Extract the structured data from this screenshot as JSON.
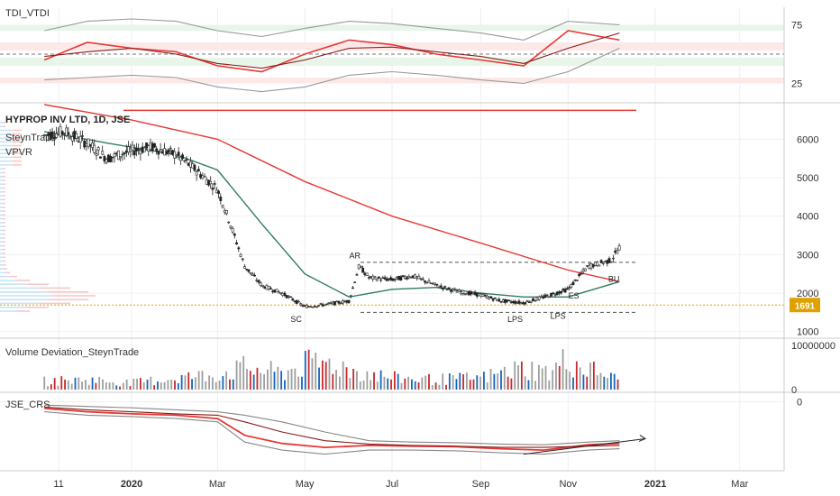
{
  "chart_data": {
    "type": "candlestick",
    "symbol_title": "HYPROP INV LTD, 1D, JSE",
    "legend_items": [
      "SteynTrade",
      "VPVR"
    ],
    "current_price_label": "1691",
    "x_ticks": [
      "11",
      "2020",
      "Mar",
      "May",
      "Jul",
      "Sep",
      "Nov",
      "2021",
      "Mar"
    ],
    "price_axis": {
      "ticks": [
        "6000",
        "5000",
        "4000",
        "3000",
        "2000",
        "1000"
      ],
      "ylim": [
        900,
        6900
      ]
    },
    "price_series": {
      "name": "HYPROP INV LTD",
      "x": [
        "2019-11-01",
        "2019-11-15",
        "2019-12-01",
        "2019-12-15",
        "2020-01-01",
        "2020-01-15",
        "2020-02-01",
        "2020-02-15",
        "2020-03-01",
        "2020-03-10",
        "2020-03-20",
        "2020-04-01",
        "2020-04-15",
        "2020-05-01",
        "2020-05-15",
        "2020-06-01",
        "2020-06-08",
        "2020-06-15",
        "2020-07-01",
        "2020-07-15",
        "2020-08-01",
        "2020-08-15",
        "2020-09-01",
        "2020-09-15",
        "2020-10-01",
        "2020-10-15",
        "2020-11-01",
        "2020-11-15",
        "2020-12-01",
        "2020-12-07"
      ],
      "close": [
        6100,
        6200,
        5900,
        5500,
        5700,
        5800,
        5600,
        5200,
        4700,
        3800,
        2700,
        2200,
        2000,
        1650,
        1700,
        1800,
        2700,
        2400,
        2350,
        2450,
        2200,
        2050,
        1950,
        1800,
        1750,
        1900,
        2100,
        2700,
        2850,
        3200
      ]
    },
    "moving_averages": [
      {
        "color": "#2e7d5b",
        "x": [
          "2019-11-01",
          "2019-12-15",
          "2020-02-01",
          "2020-03-01",
          "2020-04-01",
          "2020-05-01",
          "2020-06-01",
          "2020-07-01",
          "2020-08-01",
          "2020-09-01",
          "2020-10-01",
          "2020-11-01",
          "2020-12-07"
        ],
        "values": [
          6200,
          5900,
          5600,
          5200,
          3800,
          2500,
          1900,
          2100,
          2150,
          2000,
          1900,
          1900,
          2300
        ]
      },
      {
        "color": "#e53935",
        "x": [
          "2019-11-01",
          "2020-01-01",
          "2020-03-01",
          "2020-05-01",
          "2020-07-01",
          "2020-09-01",
          "2020-11-01",
          "2020-12-07"
        ],
        "values": [
          6900,
          6500,
          6000,
          4900,
          4000,
          3300,
          2600,
          2300
        ]
      }
    ],
    "reference_lines": [
      {
        "value": 6750,
        "color": "#e53935"
      },
      {
        "value": 2800,
        "color": "#555555",
        "style": "dashed"
      },
      {
        "value": 1500,
        "color": "#555555",
        "style": "dashed"
      },
      {
        "value": 1691,
        "color": "#e0a100",
        "style": "dotted"
      }
    ],
    "annotations": [
      {
        "text": "AR",
        "x": "2020-06-05",
        "y": 2900
      },
      {
        "text": "SC",
        "x": "2020-04-25",
        "y": 1250
      },
      {
        "text": "LPS",
        "x": "2020-09-25",
        "y": 1250
      },
      {
        "text": "LPS",
        "x": "2020-10-25",
        "y": 1330
      },
      {
        "text": "BU",
        "x": "2020-12-03",
        "y": 2300
      },
      {
        "text": "ES",
        "x": "2020-11-05",
        "y": 1860
      }
    ],
    "tdi": {
      "title": "TDI_VTDI",
      "ticks": [
        "75",
        "25"
      ],
      "ylim": [
        10,
        90
      ],
      "x": [
        "2019-11-01",
        "2019-12-01",
        "2020-01-01",
        "2020-02-01",
        "2020-03-01",
        "2020-04-01",
        "2020-05-01",
        "2020-06-01",
        "2020-07-01",
        "2020-08-01",
        "2020-09-01",
        "2020-10-01",
        "2020-11-01",
        "2020-12-07"
      ],
      "series": [
        {
          "color": "#e53935",
          "values": [
            45,
            60,
            55,
            52,
            40,
            35,
            50,
            62,
            58,
            50,
            45,
            40,
            70,
            62
          ]
        },
        {
          "color": "#8b1a1a",
          "values": [
            48,
            52,
            55,
            50,
            42,
            38,
            45,
            55,
            56,
            52,
            48,
            42,
            55,
            68
          ]
        },
        {
          "color": "#999999",
          "values": [
            70,
            78,
            80,
            78,
            70,
            65,
            72,
            78,
            76,
            72,
            68,
            62,
            78,
            75
          ]
        },
        {
          "color": "#999999",
          "values": [
            28,
            30,
            32,
            30,
            22,
            18,
            22,
            32,
            35,
            32,
            28,
            25,
            35,
            55
          ]
        }
      ],
      "bands": [
        {
          "from": 70,
          "to": 75,
          "color": "#e8f5e9"
        },
        {
          "from": 53,
          "to": 60,
          "color": "#fde8e8"
        },
        {
          "from": 40,
          "to": 47,
          "color": "#e8f5e9"
        },
        {
          "from": 25,
          "to": 30,
          "color": "#fde8e8"
        }
      ]
    },
    "volume": {
      "title": "Volume Deviation_SteynTrade",
      "ticks": [
        "10000000",
        "0"
      ],
      "ylim": [
        0,
        11000000
      ],
      "x": [
        "2019-11-01",
        "2019-12-01",
        "2020-01-01",
        "2020-02-01",
        "2020-03-01",
        "2020-03-20",
        "2020-04-15",
        "2020-05-01",
        "2020-05-20",
        "2020-06-05",
        "2020-07-01",
        "2020-08-01",
        "2020-09-01",
        "2020-10-01",
        "2020-10-20",
        "2020-11-01",
        "2020-11-10",
        "2020-11-25",
        "2020-12-07"
      ],
      "values": [
        2500000,
        3000000,
        2000000,
        3500000,
        4500000,
        6500000,
        5000000,
        7500000,
        8000000,
        5500000,
        3500000,
        3000000,
        3500000,
        6500000,
        5000000,
        9500000,
        6500000,
        5000000,
        2500000
      ]
    },
    "rs": {
      "title": "JSE_CRS",
      "ticks": [
        "0"
      ],
      "ylim": [
        -100,
        10
      ],
      "x": [
        "2019-11-01",
        "2019-12-01",
        "2020-01-01",
        "2020-02-01",
        "2020-03-01",
        "2020-03-20",
        "2020-04-15",
        "2020-05-15",
        "2020-06-15",
        "2020-07-15",
        "2020-08-15",
        "2020-09-15",
        "2020-10-15",
        "2020-11-15",
        "2020-12-07"
      ],
      "series": [
        {
          "color": "#e53935",
          "values": [
            -10,
            -15,
            -18,
            -20,
            -25,
            -50,
            -62,
            -68,
            -65,
            -66,
            -67,
            -70,
            -72,
            -64,
            -62
          ]
        },
        {
          "color": "#8b1a1a",
          "values": [
            -8,
            -12,
            -15,
            -18,
            -20,
            -30,
            -45,
            -58,
            -63,
            -65,
            -66,
            -68,
            -68,
            -66,
            -65
          ]
        },
        {
          "color": "#888888",
          "values": [
            -5,
            -7,
            -9,
            -12,
            -15,
            -20,
            -30,
            -45,
            -58,
            -60,
            -61,
            -63,
            -64,
            -60,
            -58
          ]
        },
        {
          "color": "#888888",
          "values": [
            -15,
            -20,
            -22,
            -25,
            -30,
            -60,
            -72,
            -78,
            -72,
            -72,
            -73,
            -76,
            -78,
            -72,
            -70
          ]
        }
      ],
      "trendline": {
        "x": [
          "2020-10-01",
          "2020-12-25"
        ],
        "values": [
          -78,
          -55
        ]
      }
    }
  }
}
